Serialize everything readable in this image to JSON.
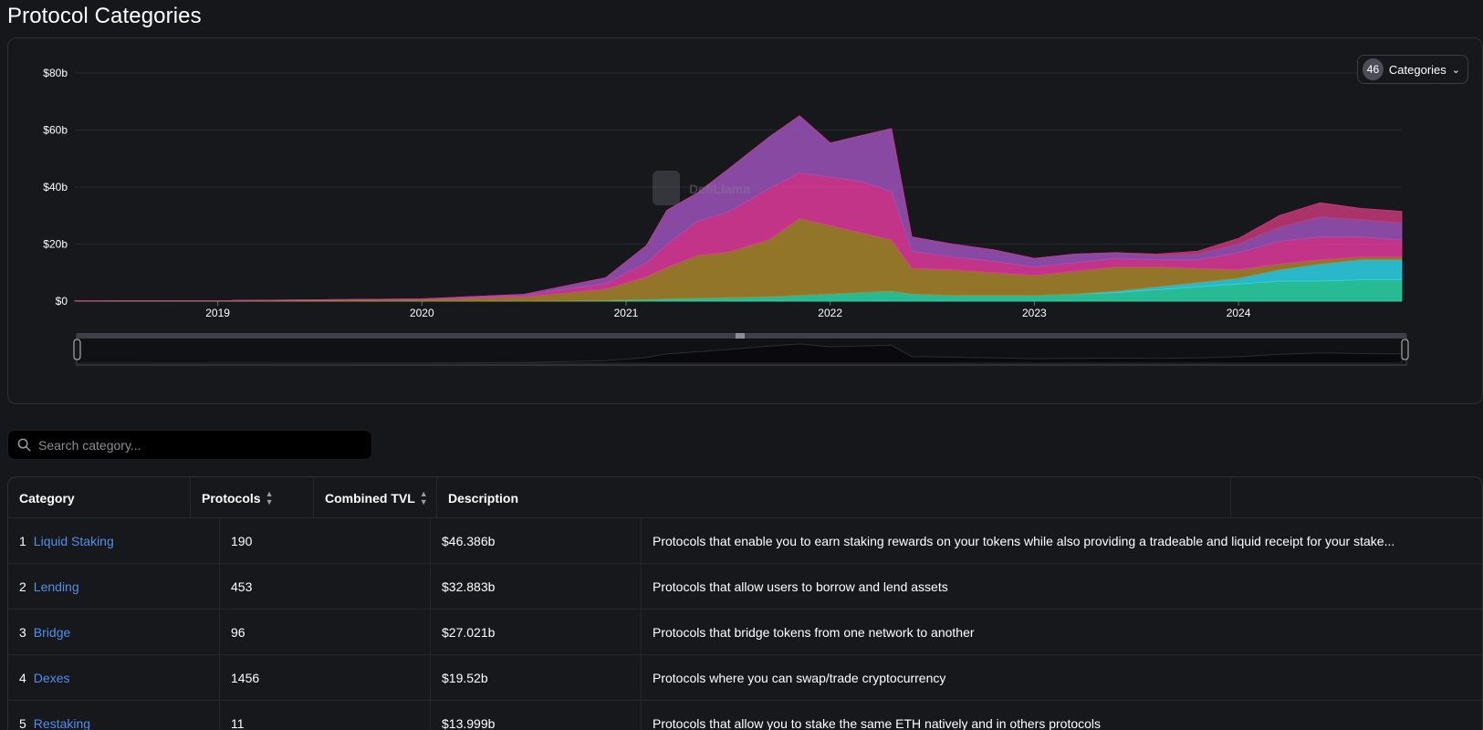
{
  "page": {
    "title": "Protocol Categories"
  },
  "watermark": "DefiLlama",
  "category_selector": {
    "count": "46",
    "label": "Categories",
    "chevron_icon": "chevron-down-icon"
  },
  "search": {
    "placeholder": "Search category...",
    "value": "",
    "icon": "search-icon"
  },
  "table": {
    "headers": {
      "category": "Category",
      "protocols": "Protocols",
      "tvl": "Combined TVL",
      "description": "Description"
    },
    "rows": [
      {
        "rank": "1",
        "name": "Liquid Staking",
        "protocols": "190",
        "tvl": "$46.386b",
        "description": "Protocols that enable you to earn staking rewards on your tokens while also providing a tradeable and liquid receipt for your stake..."
      },
      {
        "rank": "2",
        "name": "Lending",
        "protocols": "453",
        "tvl": "$32.883b",
        "description": "Protocols that allow users to borrow and lend assets"
      },
      {
        "rank": "3",
        "name": "Bridge",
        "protocols": "96",
        "tvl": "$27.021b",
        "description": "Protocols that bridge tokens from one network to another"
      },
      {
        "rank": "4",
        "name": "Dexes",
        "protocols": "1456",
        "tvl": "$19.52b",
        "description": "Protocols where you can swap/trade cryptocurrency"
      },
      {
        "rank": "5",
        "name": "Restaking",
        "protocols": "11",
        "tvl": "$13.999b",
        "description": "Protocols that allow you to stake the same ETH natively and in others protocols"
      }
    ]
  },
  "colors": {
    "background": "#16171b",
    "link": "#4f8fea",
    "purple": "#9b52b8",
    "pink": "#e0399a",
    "gold": "#a8862a",
    "cyan": "#2ed4e8",
    "teal": "#2bd7a8"
  },
  "chart_data": {
    "type": "area",
    "stacked": true,
    "title": "",
    "xlabel": "",
    "ylabel": "",
    "x_ticks": [
      "2019",
      "2020",
      "2021",
      "2022",
      "2023",
      "2024"
    ],
    "y_ticks": [
      "$0",
      "$20b",
      "$40b",
      "$60b",
      "$80b"
    ],
    "ylim": [
      0,
      80
    ],
    "y_unit": "$b",
    "grid": true,
    "x": [
      2018.3,
      2019.0,
      2020.0,
      2020.5,
      2020.9,
      2021.1,
      2021.2,
      2021.35,
      2021.5,
      2021.7,
      2021.85,
      2022.0,
      2022.15,
      2022.3,
      2022.4,
      2022.6,
      2022.8,
      2023.0,
      2023.2,
      2023.4,
      2023.6,
      2023.8,
      2024.0,
      2024.2,
      2024.4,
      2024.6,
      2024.8
    ],
    "series": [
      {
        "color": "#2bd7a8",
        "values": [
          0,
          0,
          0,
          0,
          0.2,
          0.5,
          0.8,
          1,
          1.2,
          1.5,
          2,
          2.5,
          3,
          3.5,
          2.5,
          2,
          2,
          2,
          2.5,
          3,
          4,
          5,
          6,
          7,
          7,
          7.5,
          7.5
        ]
      },
      {
        "color": "#2ed4e8",
        "values": [
          0,
          0,
          0,
          0,
          0,
          0,
          0,
          0,
          0,
          0,
          0,
          0,
          0,
          0,
          0,
          0,
          0,
          0,
          0,
          0.5,
          1,
          1.5,
          2,
          4,
          6,
          7,
          7
        ]
      },
      {
        "color": "#a8862a",
        "values": [
          0.1,
          0.2,
          0.6,
          1.5,
          4,
          8,
          11,
          15,
          16,
          20,
          27,
          24,
          21,
          18,
          9,
          9,
          8,
          7,
          8,
          8.5,
          7,
          5,
          3,
          2,
          1.5,
          1,
          1
        ]
      },
      {
        "color": "#e0399a",
        "values": [
          0,
          0,
          0.1,
          0.5,
          2,
          5,
          8,
          12,
          14,
          18,
          16,
          17,
          18,
          17,
          6,
          4.5,
          4,
          3,
          3,
          3,
          2.5,
          3,
          6,
          8,
          8,
          7,
          6
        ]
      },
      {
        "color": "#9b52b8",
        "values": [
          0,
          0,
          0.1,
          0.4,
          2,
          6,
          12,
          10,
          15,
          18,
          20,
          12,
          16,
          22,
          5,
          4.5,
          4,
          3,
          3,
          2,
          1.5,
          2,
          3,
          5,
          7,
          6,
          6
        ]
      },
      {
        "color": "#c43a78",
        "values": [
          0,
          0,
          0,
          0,
          0,
          0,
          0,
          0,
          0,
          0,
          0,
          0,
          0,
          0,
          0,
          0,
          0,
          0,
          0,
          0,
          0.5,
          1,
          2,
          4,
          5,
          4,
          4
        ]
      }
    ]
  }
}
